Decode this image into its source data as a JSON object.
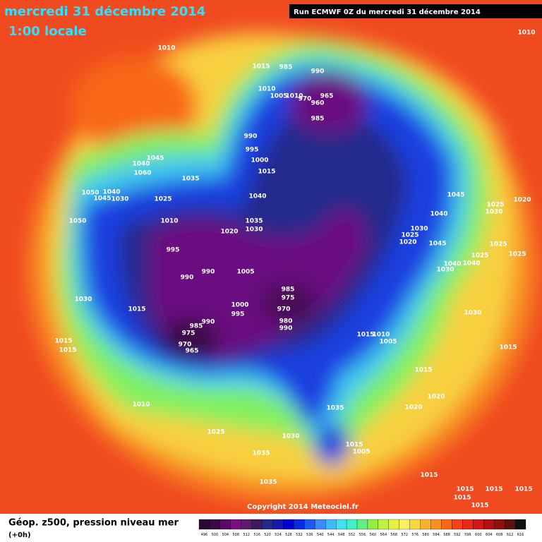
{
  "header": {
    "date": "mercredi 31 décembre 2014",
    "time": "1:00 locale",
    "run": "Run ECMWF 0Z du mercredi 31 décembre 2014"
  },
  "copyright": "Copyright 2014 Meteociel.fr",
  "footer": {
    "title": "Géop. z500, pression niveau mer",
    "range": "(+0h)"
  },
  "isobar_labels": [
    1010,
    1015,
    985,
    990,
    1010,
    1005,
    1010,
    970,
    965,
    960,
    985,
    990,
    995,
    1000,
    1015,
    1045,
    1040,
    1060,
    1035,
    1040,
    1050,
    1040,
    1045,
    1030,
    1025,
    1010,
    1050,
    1035,
    1030,
    1020,
    995,
    990,
    990,
    1005,
    1030,
    1015,
    985,
    975,
    970,
    1000,
    995,
    990,
    985,
    975,
    970,
    965,
    980,
    990,
    1015,
    1010,
    1005,
    1010,
    1025,
    1035,
    1030,
    1035,
    1015,
    1005,
    1020,
    1015,
    1020,
    1045,
    1040,
    1030,
    1025,
    1020,
    1045,
    1040,
    1030,
    1040,
    1025,
    1025,
    1025,
    1030,
    1025,
    1020,
    1030,
    1015,
    1010,
    1015,
    1015,
    1035,
    1015,
    1015,
    1015,
    1015,
    1015,
    1015
  ],
  "legend": {
    "values": [
      496,
      500,
      504,
      508,
      512,
      516,
      520,
      524,
      528,
      532,
      536,
      540,
      544,
      548,
      552,
      556,
      560,
      564,
      568,
      572,
      576,
      580,
      584,
      588,
      592,
      596,
      600,
      604,
      608,
      612,
      616
    ],
    "colors": [
      "#2a0a30",
      "#3a0a45",
      "#5a0a65",
      "#7a1080",
      "#5c1a6a",
      "#3b1a5e",
      "#242a8c",
      "#1a1aa8",
      "#0000d0",
      "#0a2ae0",
      "#1a5af0",
      "#3a8af8",
      "#40b8f8",
      "#40e0f0",
      "#40f0c0",
      "#60f080",
      "#90f040",
      "#c0f040",
      "#e8f040",
      "#f8f060",
      "#f8d840",
      "#f8b030",
      "#f89020",
      "#f86818",
      "#f84018",
      "#e82818",
      "#d01818",
      "#b01010",
      "#901010",
      "#601010",
      "#101010"
    ]
  }
}
